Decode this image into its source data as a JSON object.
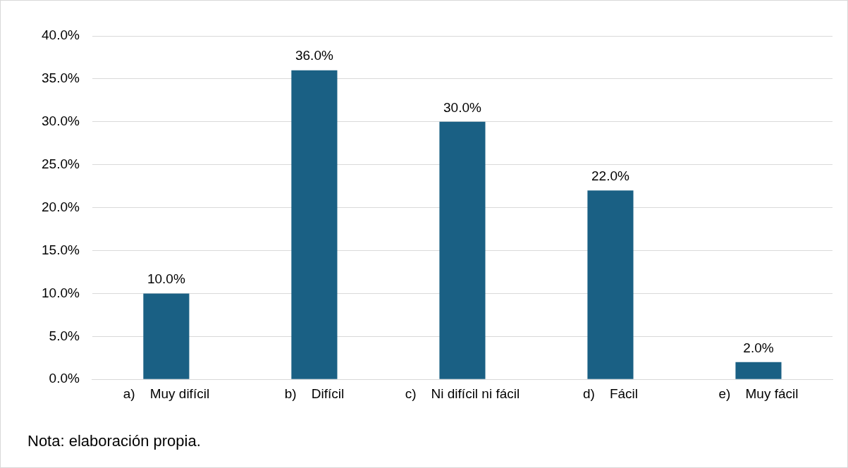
{
  "chart_data": {
    "type": "bar",
    "categories": [
      "a)    Muy difícil",
      "b)    Difícil",
      "c)    Ni difícil ni fácil",
      "d)    Fácil",
      "e)    Muy fácil"
    ],
    "values": [
      10,
      36,
      30,
      22,
      2
    ],
    "color": "#1a6084",
    "value_labels": [
      "10.0%",
      "36.0%",
      "30.0%",
      "22.0%",
      "2.0%"
    ],
    "ylim": [
      0,
      40
    ],
    "yticks": [
      {
        "value": 0,
        "label": "0.0%"
      },
      {
        "value": 5,
        "label": "5.0%"
      },
      {
        "value": 10,
        "label": "10.0%"
      },
      {
        "value": 15,
        "label": "15.0%"
      },
      {
        "value": 20,
        "label": "20.0%"
      },
      {
        "value": 25,
        "label": "25.0%"
      },
      {
        "value": 30,
        "label": "30.0%"
      },
      {
        "value": 35,
        "label": "35.0%"
      },
      {
        "value": 40,
        "label": "40.0%"
      }
    ],
    "grid": "y",
    "legend": false,
    "annotations": [
      "Nota: elaboración propia."
    ]
  }
}
